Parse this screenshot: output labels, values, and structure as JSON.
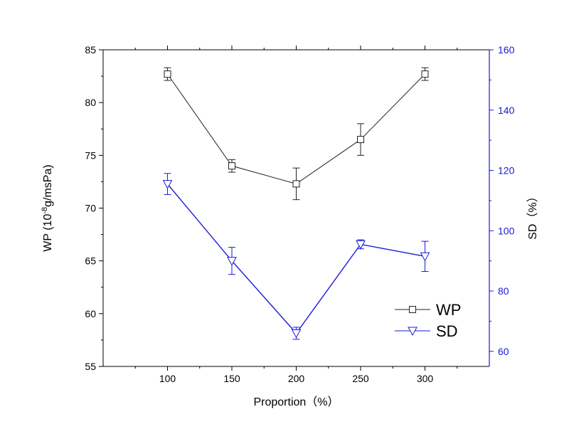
{
  "chart_data": {
    "type": "line",
    "x": [
      100,
      150,
      200,
      250,
      300
    ],
    "xlabel": "Proportion（%）",
    "xlim": [
      50,
      350
    ],
    "xticks": [
      100,
      150,
      200,
      250,
      300
    ],
    "ylabel_left": {
      "prefix": "WP (10",
      "exp": "-8",
      "suffix": "g/msPa)"
    },
    "ylim_left": [
      55,
      85
    ],
    "yticks_left": [
      55,
      60,
      65,
      70,
      75,
      80,
      85
    ],
    "ylabel_right": "SD（%）",
    "ylim_right": [
      55,
      160
    ],
    "yticks_right": [
      60,
      80,
      100,
      120,
      140,
      160
    ],
    "right_axis_color": "#1a1ad6",
    "legend_position": "lower-right",
    "series": [
      {
        "name": "WP",
        "axis": "left",
        "color": "#222222",
        "marker": "square",
        "values": [
          82.7,
          74.0,
          72.3,
          76.5,
          82.7
        ],
        "errors": [
          0.6,
          0.6,
          1.5,
          1.5,
          0.6
        ]
      },
      {
        "name": "SD",
        "axis": "right",
        "color": "#1a1ad6",
        "marker": "triangle-down",
        "values": [
          115.5,
          90.0,
          66.0,
          95.5,
          91.5
        ],
        "errors": [
          3.5,
          4.5,
          2.0,
          1.5,
          5.0
        ]
      }
    ]
  }
}
